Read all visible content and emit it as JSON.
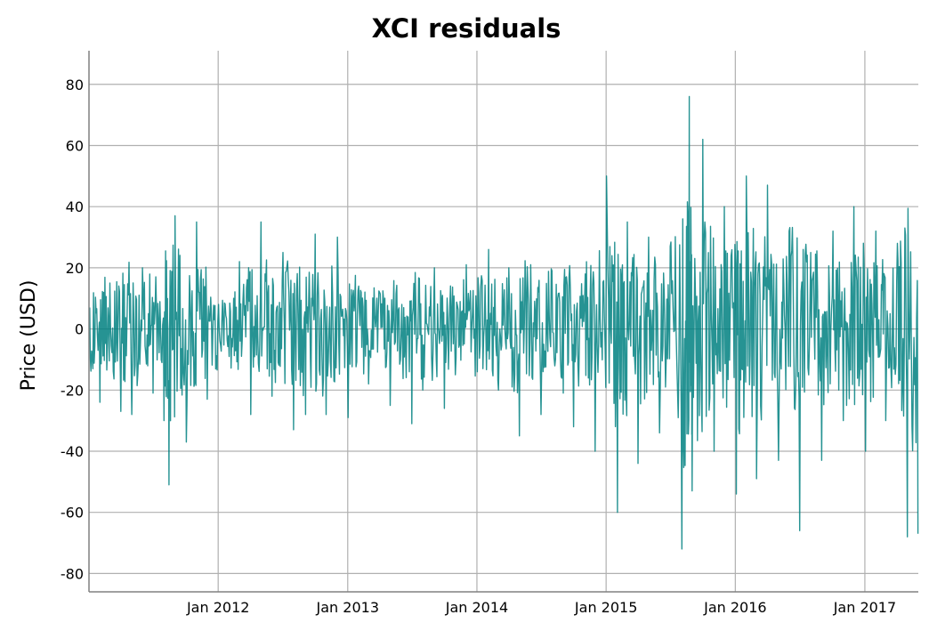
{
  "chart_data": {
    "type": "line",
    "title": "XCI residuals",
    "xlabel": "",
    "ylabel": "Price (USD)",
    "ylim": [
      -86,
      91
    ],
    "xlim": [
      "2011-01-01",
      "2017-06-01"
    ],
    "yticks": [
      80,
      60,
      40,
      20,
      0,
      -20,
      -40,
      -60,
      -80
    ],
    "ytick_labels": [
      "80",
      "60",
      "40",
      "20",
      "0",
      "-20",
      "-40",
      "-60",
      "-80"
    ],
    "xticks": [
      "2012-01-01",
      "2013-01-01",
      "2014-01-01",
      "2015-01-01",
      "2016-01-01",
      "2017-01-01"
    ],
    "xtick_labels": [
      "Jan 2012",
      "Jan 2013",
      "Jan 2014",
      "Jan 2015",
      "Jan 2016",
      "Jan 2017"
    ],
    "grid": true,
    "legend": "none",
    "series_color": "#008080",
    "series": [
      {
        "x": [
          "2011-01-03",
          "2011-02-01",
          "2011-03-01",
          "2011-04-01",
          "2011-05-02",
          "2011-06-01",
          "2011-07-01",
          "2011-08-01",
          "2011-08-15",
          "2011-09-01",
          "2011-10-03",
          "2011-11-01",
          "2011-12-01",
          "2012-01-02",
          "2012-02-01",
          "2012-03-01",
          "2012-04-02",
          "2012-05-01",
          "2012-06-01",
          "2012-07-02",
          "2012-08-01",
          "2012-09-04",
          "2012-10-01",
          "2012-11-01",
          "2012-12-03",
          "2013-01-02",
          "2013-02-01",
          "2013-03-01",
          "2013-04-01",
          "2013-05-01",
          "2013-06-03",
          "2013-07-01",
          "2013-08-01",
          "2013-09-03",
          "2013-10-01",
          "2013-11-01",
          "2013-12-02",
          "2014-01-02",
          "2014-02-03",
          "2014-03-03",
          "2014-04-01",
          "2014-05-01",
          "2014-06-02",
          "2014-07-01",
          "2014-08-01",
          "2014-09-02",
          "2014-10-01",
          "2014-11-03",
          "2014-12-01",
          "2015-01-02",
          "2015-02-02",
          "2015-03-02",
          "2015-04-01",
          "2015-05-01",
          "2015-06-01",
          "2015-07-01",
          "2015-08-03",
          "2015-08-24",
          "2015-09-01",
          "2015-10-01",
          "2015-11-02",
          "2015-12-01",
          "2016-01-04",
          "2016-02-01",
          "2016-03-01",
          "2016-04-01",
          "2016-05-02",
          "2016-06-01",
          "2016-07-01",
          "2016-08-01",
          "2016-09-01",
          "2016-10-03",
          "2016-11-01",
          "2016-12-01",
          "2017-01-03",
          "2017-02-01",
          "2017-03-01",
          "2017-04-03",
          "2017-05-01",
          "2017-05-31"
        ],
        "values": [
          7,
          -24,
          15,
          -27,
          -28,
          20,
          -21,
          -30,
          -51,
          37,
          -37,
          35,
          -23,
          8,
          -9,
          22,
          -28,
          35,
          -22,
          25,
          -33,
          -28,
          31,
          -28,
          30,
          -29,
          14,
          -18,
          12,
          -25,
          8,
          -31,
          -20,
          20,
          -26,
          -15,
          21,
          -14,
          26,
          -20,
          20,
          -35,
          21,
          -28,
          19,
          -21,
          -32,
          18,
          -40,
          50,
          -60,
          35,
          -44,
          30,
          -34,
          27,
          -72,
          76,
          -53,
          62,
          -40,
          40,
          -54,
          50,
          -49,
          47,
          -43,
          32,
          -66,
          25,
          -43,
          32,
          -30,
          40,
          -40,
          32,
          -30,
          28,
          -68,
          -67
        ]
      }
    ]
  }
}
